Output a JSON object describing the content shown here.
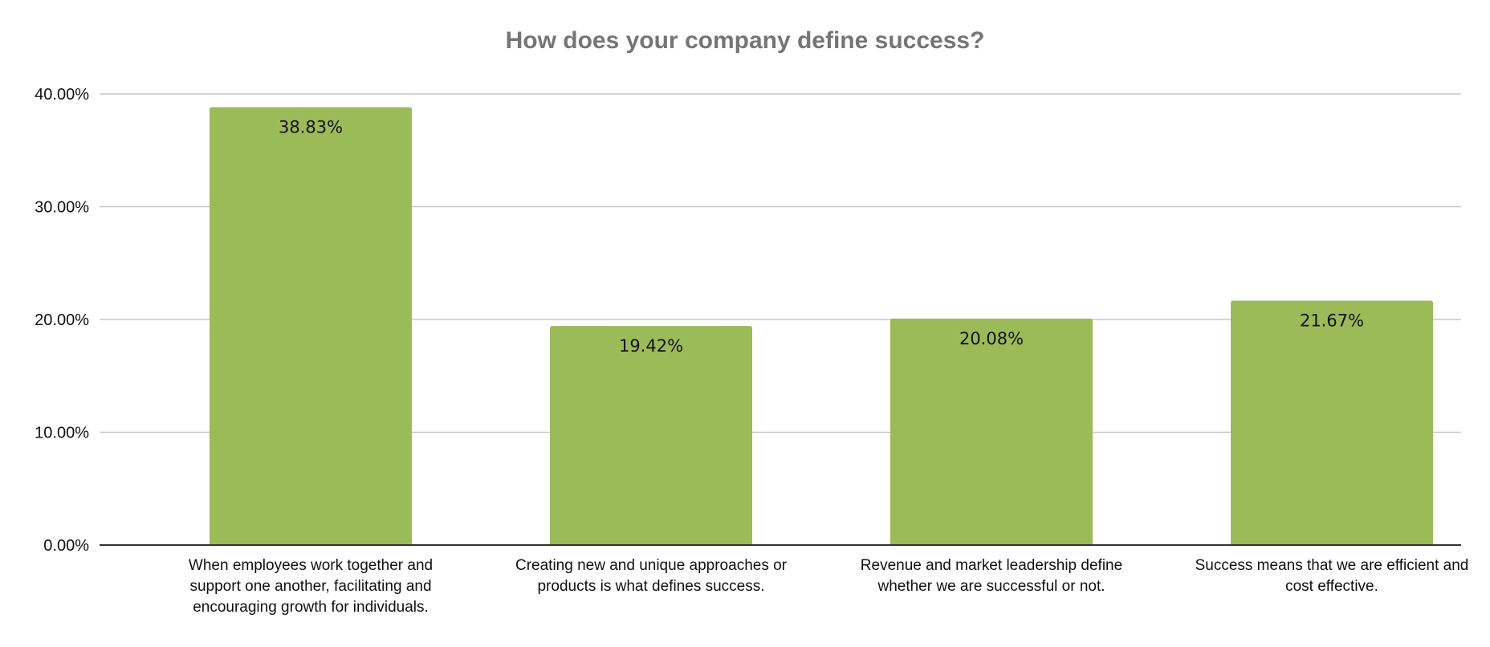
{
  "chart_data": {
    "type": "bar",
    "title": "How does your company define success?",
    "xlabel": "",
    "ylabel": "",
    "categories": [
      [
        "When employees work together and",
        "support one another, facilitating and",
        "encouraging growth for individuals."
      ],
      [
        "Creating new and unique approaches or",
        "products is what defines success."
      ],
      [
        "Revenue and market leadership define",
        "whether we are successful or not."
      ],
      [
        "Success means that we are efficient and",
        "cost effective."
      ]
    ],
    "values": [
      38.83,
      19.42,
      20.08,
      21.67
    ],
    "data_labels": [
      "38.83%",
      "19.42%",
      "20.08%",
      "21.67%"
    ],
    "y_ticks": [
      0,
      10,
      20,
      30,
      40
    ],
    "y_tick_labels": [
      "0.00%",
      "10.00%",
      "20.00%",
      "30.00%",
      "40.00%"
    ],
    "ylim": [
      0,
      40
    ],
    "grid": true,
    "legend": "none",
    "bar_color": "#9bbb59",
    "gridline_color": "#c6c6c6",
    "axis_color": "#333333",
    "title_color": "#757575"
  }
}
